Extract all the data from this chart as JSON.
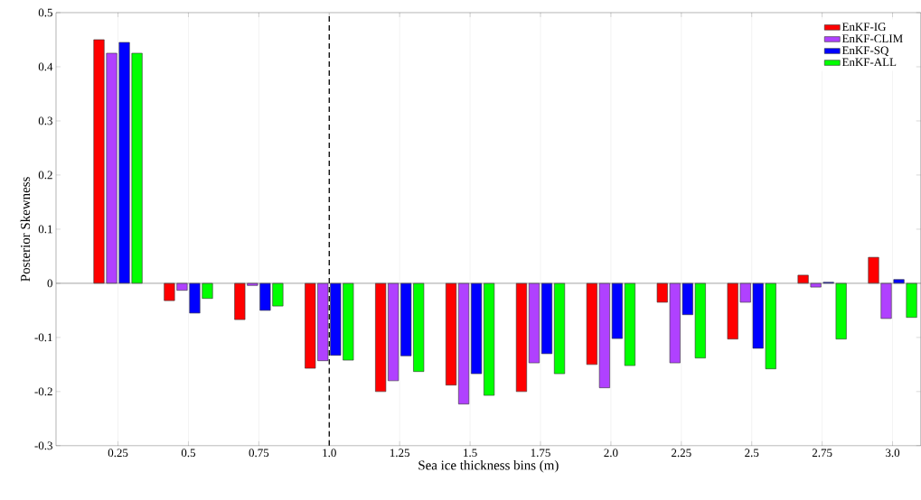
{
  "chart_data": {
    "type": "bar",
    "xlabel": "Sea ice thickness bins (m)",
    "ylabel": "Posterior Skewness",
    "x": [
      0.25,
      0.5,
      0.75,
      1.0,
      1.25,
      1.5,
      1.75,
      2.0,
      2.25,
      2.5,
      2.75,
      3.0
    ],
    "series": [
      {
        "name": "EnKF-IG",
        "color": "#ff0000",
        "values": [
          0.45,
          -0.032,
          -0.067,
          -0.157,
          -0.2,
          -0.188,
          -0.2,
          -0.15,
          -0.035,
          -0.103,
          0.015,
          0.048
        ]
      },
      {
        "name": "EnKF-CLIM",
        "color": "#b041ff",
        "values": [
          0.425,
          -0.013,
          -0.004,
          -0.143,
          -0.18,
          -0.223,
          -0.147,
          -0.193,
          -0.147,
          -0.035,
          -0.007,
          -0.065
        ]
      },
      {
        "name": "EnKF-SQ",
        "color": "#0000ff",
        "values": [
          0.445,
          -0.055,
          -0.05,
          -0.133,
          -0.134,
          -0.167,
          -0.13,
          -0.102,
          -0.058,
          -0.12,
          0.002,
          0.007
        ]
      },
      {
        "name": "EnKF-ALL",
        "color": "#00ff00",
        "values": [
          0.425,
          -0.028,
          -0.042,
          -0.142,
          -0.163,
          -0.207,
          -0.167,
          -0.152,
          -0.138,
          -0.158,
          -0.103,
          -0.063
        ]
      }
    ],
    "xlim": [
      0.03,
      3.1
    ],
    "xticks": [
      0.25,
      0.5,
      0.75,
      {
        "value": 1,
        "label": "1.0"
      },
      1.25,
      1.5,
      1.75,
      {
        "value": 2,
        "label": "2.0"
      },
      2.25,
      2.5,
      2.75,
      {
        "value": 3,
        "label": "3.0"
      }
    ],
    "ylim": [
      -0.3,
      0.5
    ],
    "yticks": [
      -0.3,
      -0.2,
      -0.1,
      0,
      0.1,
      0.2,
      0.3,
      0.4,
      0.5
    ],
    "ref_lines": [
      {
        "axis": "x",
        "value": 1,
        "color": "#000000",
        "line_style": "dashed"
      }
    ],
    "grid": "x",
    "legend": "top right"
  }
}
